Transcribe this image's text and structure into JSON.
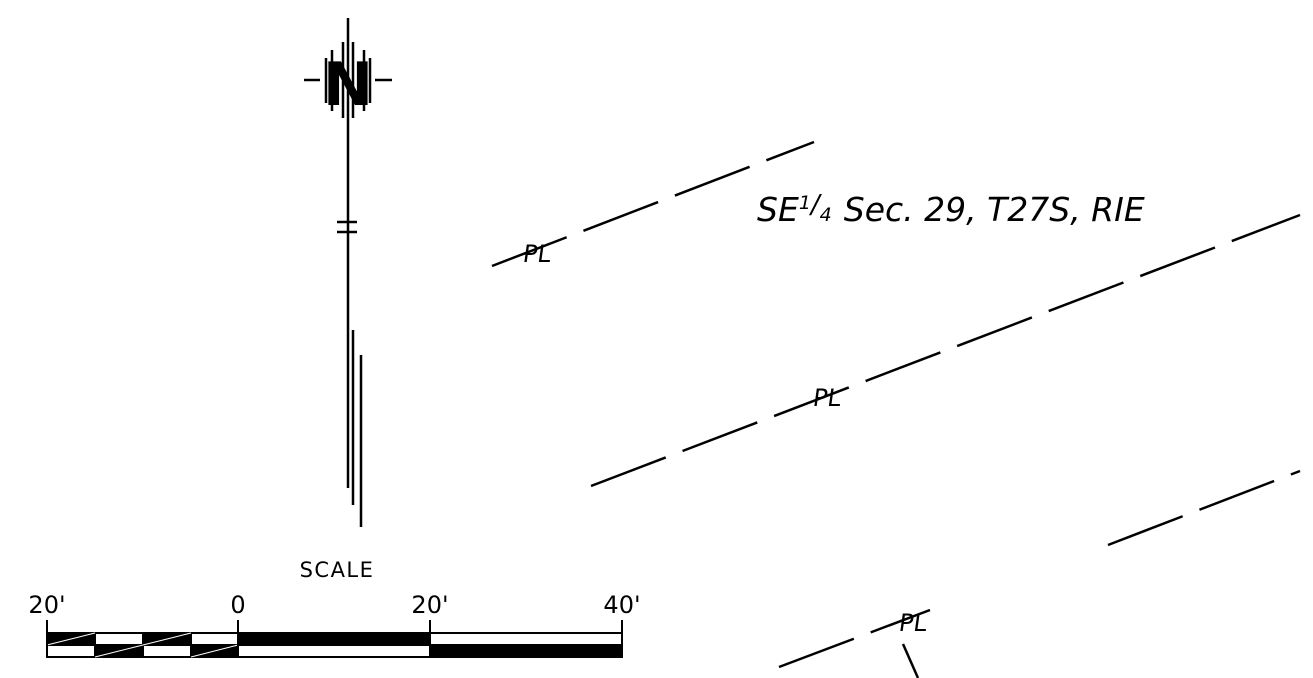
{
  "north_arrow": {
    "letter": "N"
  },
  "section_label": {
    "prefix": "SE",
    "fraction_num": "1",
    "fraction_den": "4",
    "rest": "Sec. 29, T27S, RIE"
  },
  "property_line_symbol": "PL",
  "scale_bar": {
    "title": "SCALE",
    "tick_labels": [
      "20'",
      "0",
      "20'",
      "40'"
    ]
  },
  "colors": {
    "line": "#000000",
    "background": "#ffffff"
  }
}
